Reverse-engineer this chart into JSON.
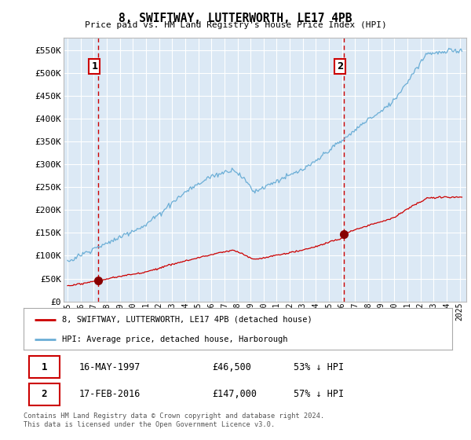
{
  "title": "8, SWIFTWAY, LUTTERWORTH, LE17 4PB",
  "subtitle": "Price paid vs. HM Land Registry's House Price Index (HPI)",
  "ylabel_ticks": [
    "£0",
    "£50K",
    "£100K",
    "£150K",
    "£200K",
    "£250K",
    "£300K",
    "£350K",
    "£400K",
    "£450K",
    "£500K",
    "£550K"
  ],
  "ytick_values": [
    0,
    50000,
    100000,
    150000,
    200000,
    250000,
    300000,
    350000,
    400000,
    450000,
    500000,
    550000
  ],
  "ylim": [
    0,
    578000
  ],
  "xlim_start": 1994.7,
  "xlim_end": 2025.5,
  "background_color": "#dce9f5",
  "fig_bg": "#ffffff",
  "hpi_line_color": "#6baed6",
  "price_line_color": "#cc0000",
  "sale1_x": 1997.37,
  "sale1_y": 46500,
  "sale2_x": 2016.12,
  "sale2_y": 147000,
  "dashed_line_color": "#cc0000",
  "legend_label1": "8, SWIFTWAY, LUTTERWORTH, LE17 4PB (detached house)",
  "legend_label2": "HPI: Average price, detached house, Harborough",
  "annotation1_label": "1",
  "annotation2_label": "2",
  "footer": "Contains HM Land Registry data © Crown copyright and database right 2024.\nThis data is licensed under the Open Government Licence v3.0.",
  "xtick_years": [
    1995,
    1996,
    1997,
    1998,
    1999,
    2000,
    2001,
    2002,
    2003,
    2004,
    2005,
    2006,
    2007,
    2008,
    2009,
    2010,
    2011,
    2012,
    2013,
    2014,
    2015,
    2016,
    2017,
    2018,
    2019,
    2020,
    2021,
    2022,
    2023,
    2024,
    2025
  ]
}
